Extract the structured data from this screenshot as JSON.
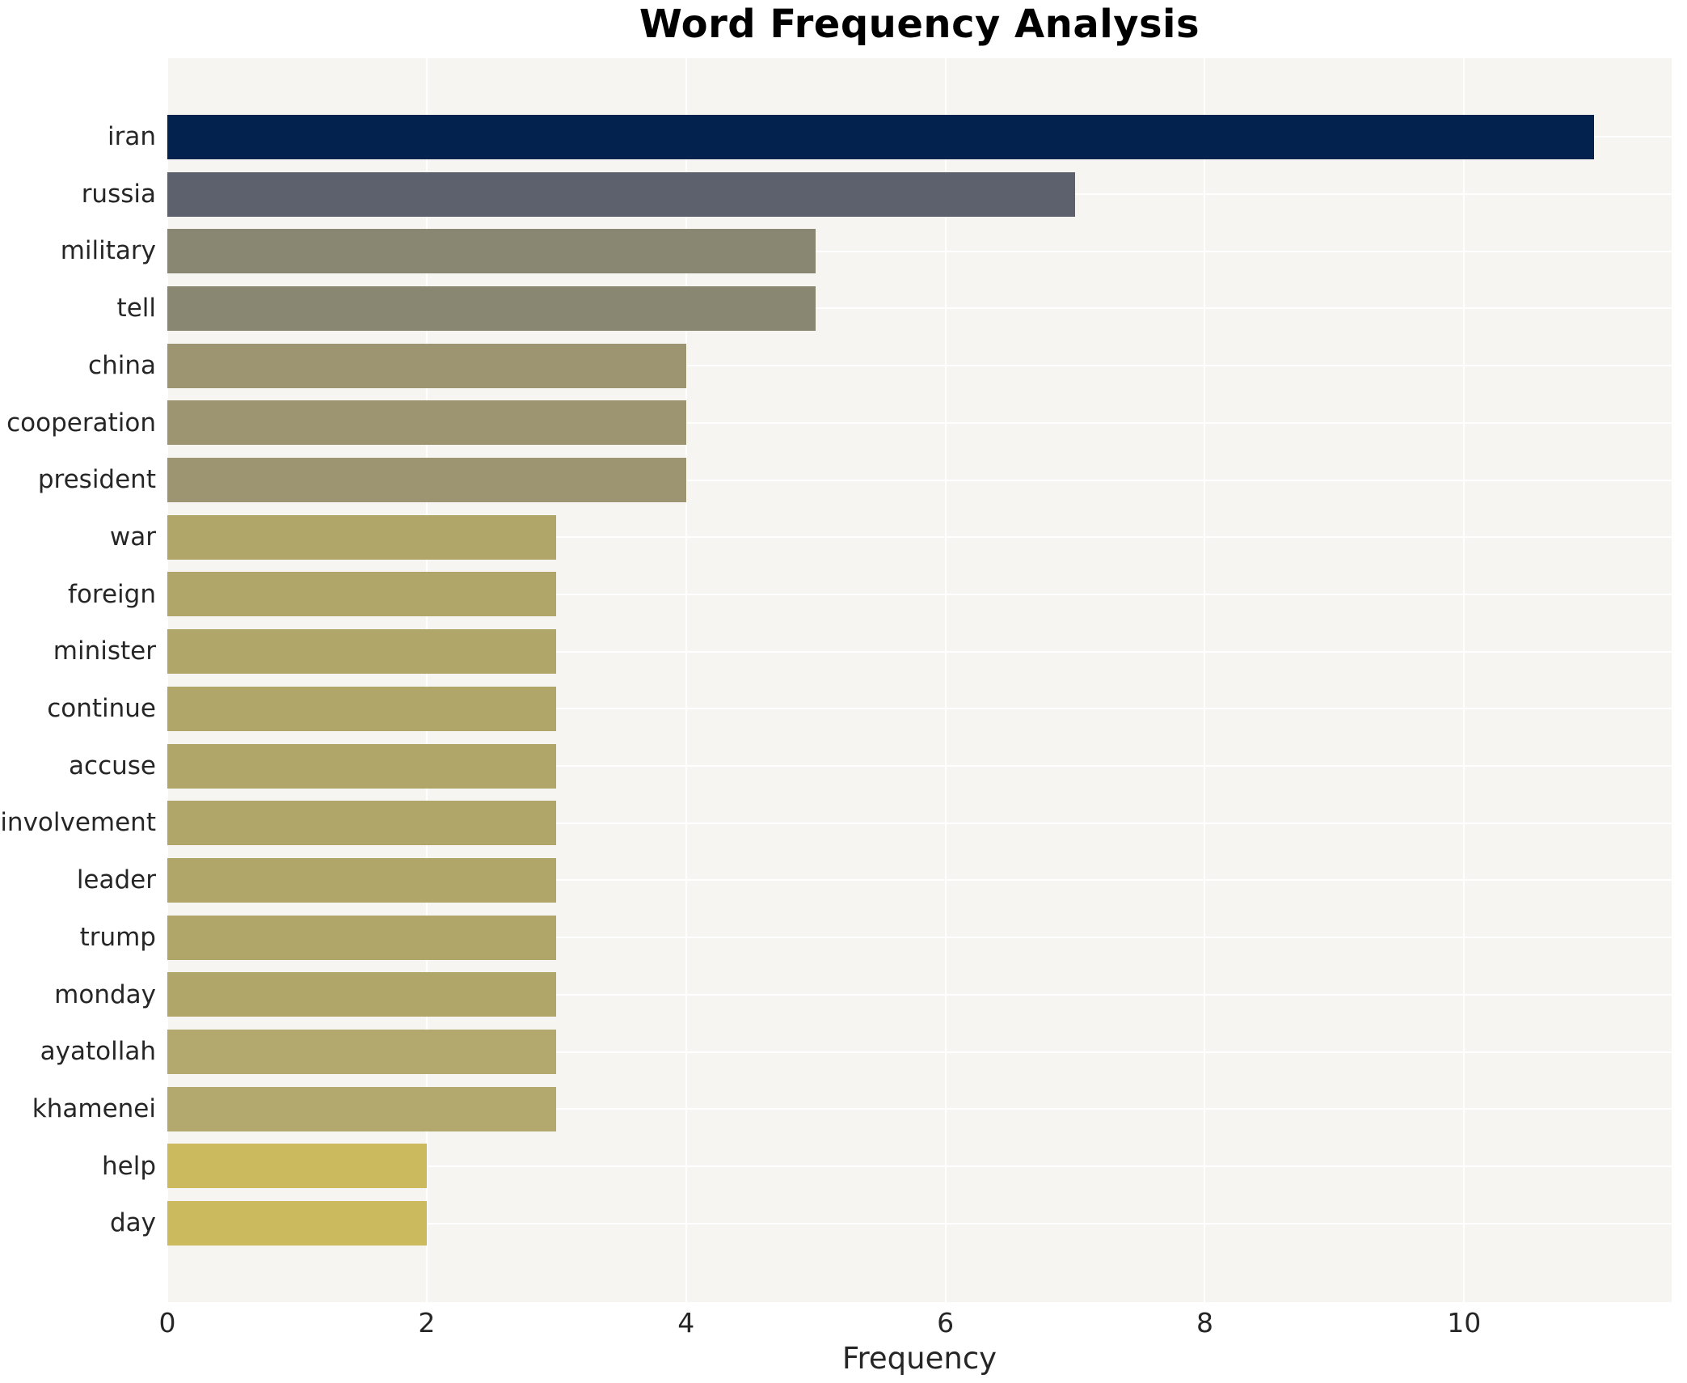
{
  "chart_data": {
    "type": "bar",
    "orientation": "horizontal",
    "title": "Word Frequency Analysis",
    "xlabel": "Frequency",
    "ylabel": "",
    "categories": [
      "iran",
      "russia",
      "military",
      "tell",
      "china",
      "cooperation",
      "president",
      "war",
      "foreign",
      "minister",
      "continue",
      "accuse",
      "involvement",
      "leader",
      "trump",
      "monday",
      "ayatollah",
      "khamenei",
      "help",
      "day"
    ],
    "values": [
      11,
      7,
      5,
      5,
      4,
      4,
      4,
      3,
      3,
      3,
      3,
      3,
      3,
      3,
      3,
      3,
      3,
      3,
      2,
      2
    ],
    "bar_colors": [
      "#03234e",
      "#5d616d",
      "#898672",
      "#898672",
      "#9d9472",
      "#9d9472",
      "#9d9472",
      "#b0a669",
      "#b0a669",
      "#b0a669",
      "#b0a669",
      "#b0a669",
      "#b0a669",
      "#b0a669",
      "#b0a669",
      "#b0a669",
      "#b3a96f",
      "#b3a96f",
      "#ccba5e",
      "#ccba5e"
    ],
    "xticks": [
      0,
      2,
      4,
      6,
      8,
      10
    ],
    "xlim": [
      0,
      11.6
    ],
    "grid": true,
    "legend": false,
    "gridline_color": "#ffffff",
    "plot_background": "#f6f5f2",
    "figure_background": "#ffffff",
    "tick_text_color": "#262626",
    "title_color": "#000000"
  }
}
